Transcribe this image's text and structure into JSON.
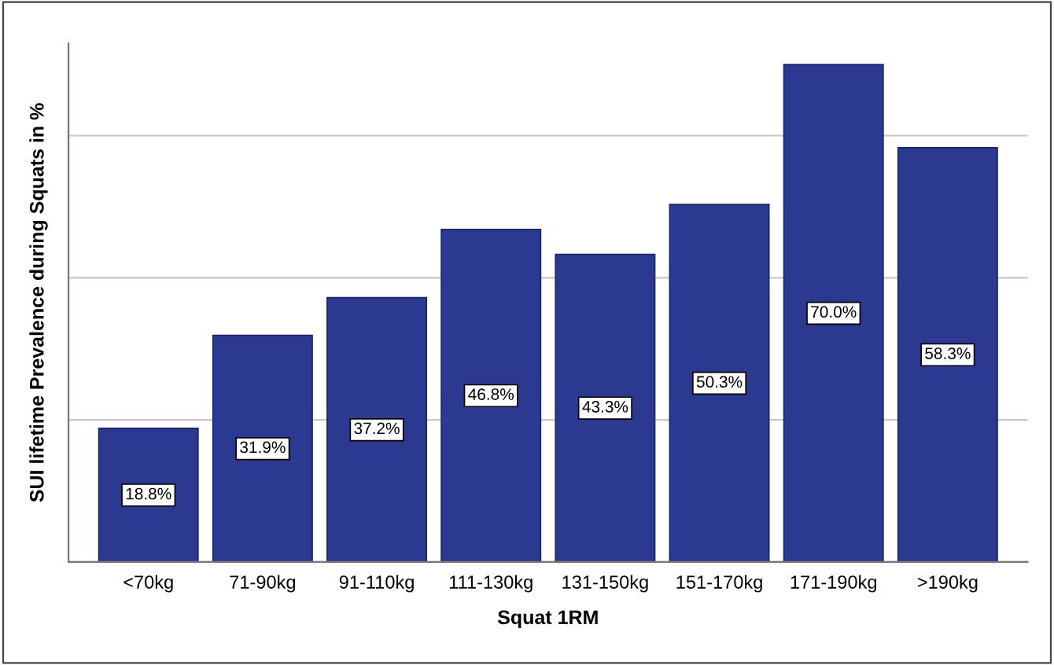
{
  "chart_data": {
    "type": "bar",
    "xlabel": "Squat 1RM",
    "ylabel": "SUI lifetime Prevalence during Squats in %",
    "categories": [
      "<70kg",
      "71-90kg",
      "91-110kg",
      "111-130kg",
      "131-150kg",
      "151-170kg",
      "171-190kg",
      ">190kg"
    ],
    "values": [
      18.8,
      31.9,
      37.2,
      46.8,
      43.3,
      50.3,
      70.0,
      58.3
    ],
    "value_labels": [
      "18.8%",
      "31.9%",
      "37.2%",
      "46.8%",
      "43.3%",
      "50.3%",
      "70.0%",
      "58.3%"
    ],
    "color": "#2b3990",
    "ylim": [
      0,
      73
    ],
    "yticks": [
      {
        "value": 0,
        "label": null
      },
      {
        "value": 20,
        "label": null
      },
      {
        "value": 40,
        "label": null
      },
      {
        "value": 60,
        "label": null
      }
    ],
    "grid": "y"
  }
}
